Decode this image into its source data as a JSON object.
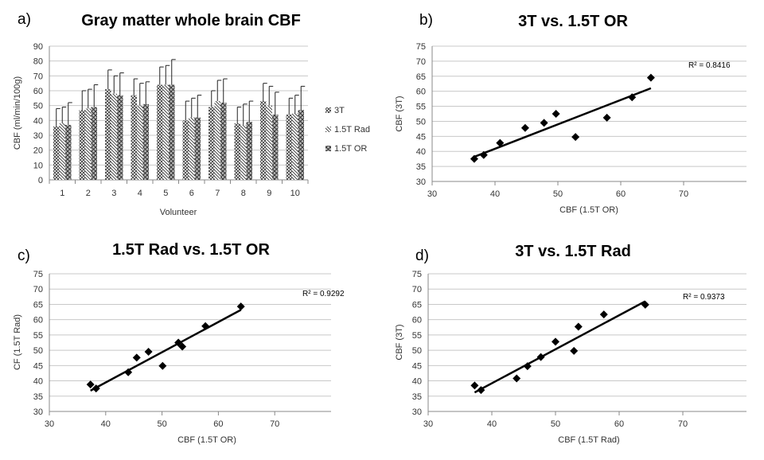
{
  "chart_data": [
    {
      "id": "a",
      "panel_label": "a)",
      "type": "bar",
      "title": "Gray matter whole brain CBF",
      "xlabel": "Volunteer",
      "ylabel": "CBF (ml/min/100g)",
      "ylim": [
        0,
        90
      ],
      "yticks": [
        "0",
        "10",
        "20",
        "30",
        "40",
        "50",
        "60",
        "70",
        "80",
        "90"
      ],
      "categories": [
        "1",
        "2",
        "3",
        "4",
        "5",
        "6",
        "7",
        "8",
        "9",
        "10"
      ],
      "grid": true,
      "legend": "right",
      "series": [
        {
          "name": "3T",
          "values": [
            36,
            47,
            61,
            57,
            64,
            40,
            49,
            38,
            53,
            44
          ],
          "errors": [
            12,
            13,
            13,
            11,
            12,
            13,
            11,
            11,
            12,
            11
          ]
        },
        {
          "name": "1.5T Rad",
          "values": [
            38,
            48,
            58,
            50,
            64,
            42,
            53,
            37,
            50,
            45
          ],
          "errors": [
            11,
            13,
            12,
            15,
            13,
            13,
            14,
            14,
            13,
            12
          ]
        },
        {
          "name": "1.5T OR",
          "values": [
            37,
            49,
            57,
            51,
            64,
            42,
            52,
            39,
            44,
            47
          ],
          "errors": [
            15,
            15,
            15,
            15,
            17,
            15,
            16,
            14,
            15,
            16
          ]
        }
      ]
    },
    {
      "id": "b",
      "panel_label": "b)",
      "type": "scatter",
      "title": "3T vs. 1.5T OR",
      "xlabel": "CBF (1.5T OR)",
      "ylabel": "CBF (3T)",
      "xlim": [
        30,
        80
      ],
      "ylim": [
        30,
        75
      ],
      "xticks": [
        "30",
        "40",
        "50",
        "60",
        "70"
      ],
      "yticks": [
        "30",
        "35",
        "40",
        "45",
        "50",
        "55",
        "60",
        "65",
        "70",
        "75"
      ],
      "grid": true,
      "points": [
        [
          36.7,
          37.5
        ],
        [
          38.2,
          38.8
        ],
        [
          40.8,
          42.8
        ],
        [
          44.8,
          47.8
        ],
        [
          47.8,
          49.5
        ],
        [
          49.7,
          52.5
        ],
        [
          52.8,
          44.8
        ],
        [
          57.8,
          51.2
        ],
        [
          61.8,
          58.0
        ],
        [
          64.8,
          64.5
        ]
      ],
      "trendline": [
        [
          36.7,
          38.2
        ],
        [
          64.8,
          61.0
        ]
      ],
      "r2": "R² = 0.8416"
    },
    {
      "id": "c",
      "panel_label": "c)",
      "type": "scatter",
      "title": "1.5T Rad vs. 1.5T OR",
      "xlabel": "CBF (1.5T OR)",
      "ylabel": "CF (1.5T Rad)",
      "xlim": [
        30,
        80
      ],
      "ylim": [
        30,
        75
      ],
      "xticks": [
        "30",
        "40",
        "50",
        "60",
        "70"
      ],
      "yticks": [
        "30",
        "35",
        "40",
        "45",
        "50",
        "55",
        "60",
        "65",
        "70",
        "75"
      ],
      "grid": true,
      "points": [
        [
          37.3,
          38.8
        ],
        [
          38.3,
          37.5
        ],
        [
          44.0,
          42.8
        ],
        [
          45.5,
          47.6
        ],
        [
          47.6,
          49.5
        ],
        [
          50.1,
          44.9
        ],
        [
          52.9,
          52.5
        ],
        [
          53.6,
          51.2
        ],
        [
          57.7,
          57.9
        ],
        [
          64.0,
          64.3
        ]
      ],
      "trendline": [
        [
          37.3,
          36.8
        ],
        [
          64.0,
          63.2
        ]
      ],
      "r2": "R² = 0.9292"
    },
    {
      "id": "d",
      "panel_label": "d)",
      "type": "scatter",
      "title": "3T vs. 1.5T Rad",
      "xlabel": "CBF (1.5T Rad)",
      "ylabel": "CBF (3T)",
      "xlim": [
        30,
        80
      ],
      "ylim": [
        30,
        75
      ],
      "xticks": [
        "30",
        "40",
        "50",
        "60",
        "70"
      ],
      "yticks": [
        "30",
        "35",
        "40",
        "45",
        "50",
        "55",
        "60",
        "65",
        "70",
        "75"
      ],
      "grid": true,
      "points": [
        [
          37.3,
          38.5
        ],
        [
          38.3,
          37.0
        ],
        [
          43.9,
          40.8
        ],
        [
          45.6,
          44.8
        ],
        [
          47.7,
          47.8
        ],
        [
          50.0,
          52.8
        ],
        [
          52.9,
          49.8
        ],
        [
          53.6,
          57.7
        ],
        [
          57.6,
          61.7
        ],
        [
          64.1,
          64.9
        ]
      ],
      "trendline": [
        [
          37.3,
          36.2
        ],
        [
          64.1,
          66.0
        ]
      ],
      "r2": "R² = 0.9373"
    }
  ]
}
